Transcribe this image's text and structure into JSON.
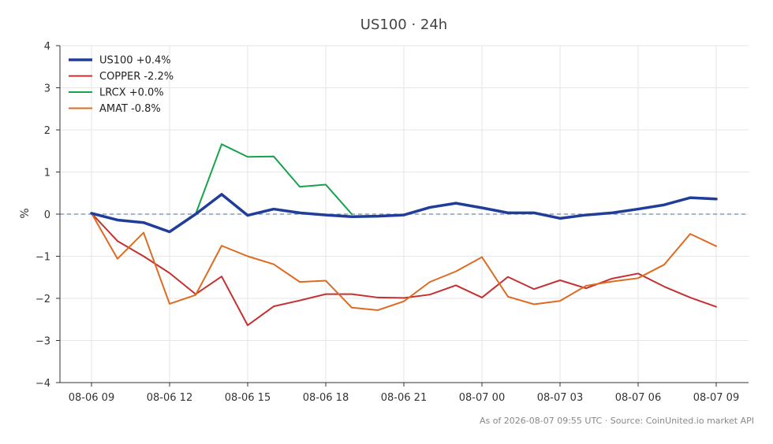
{
  "chart_data": {
    "type": "line",
    "title": "US100 · 24h",
    "xlabel": "",
    "ylabel": "%",
    "ylim": [
      -4,
      4
    ],
    "yticks": [
      4,
      3,
      2,
      1,
      0,
      -1,
      -2,
      -3,
      -4
    ],
    "ytick_labels": [
      "4",
      "3",
      "2",
      "1",
      "0",
      "−1",
      "−2",
      "−3",
      "−4"
    ],
    "x": [
      "08-06 09",
      "08-06 10",
      "08-06 11",
      "08-06 12",
      "08-06 13",
      "08-06 14",
      "08-06 15",
      "08-06 16",
      "08-06 17",
      "08-06 18",
      "08-06 19",
      "08-06 20",
      "08-06 21",
      "08-06 22",
      "08-06 23",
      "08-07 00",
      "08-07 01",
      "08-07 02",
      "08-07 03",
      "08-07 04",
      "08-07 05",
      "08-07 06",
      "08-07 07",
      "08-07 08",
      "08-07 09"
    ],
    "xtick_labels": [
      "08-06 09",
      "08-06 12",
      "08-06 15",
      "08-06 18",
      "08-06 21",
      "08-07 00",
      "08-07 03",
      "08-07 06",
      "08-07 09"
    ],
    "grid": true,
    "legend_position": "top-left",
    "zero_line": true,
    "series": [
      {
        "name": "US100 +0.4%",
        "color": "#1f3d99",
        "width": 3.5,
        "values": [
          0.02,
          -0.14,
          -0.2,
          -0.42,
          0.0,
          0.47,
          -0.03,
          0.12,
          0.03,
          -0.02,
          -0.06,
          -0.05,
          -0.02,
          0.16,
          0.26,
          0.15,
          0.03,
          0.03,
          -0.1,
          -0.02,
          0.03,
          0.12,
          0.22,
          0.39,
          0.36
        ]
      },
      {
        "name": "COPPER -2.2%",
        "color": "#c53030",
        "width": 2,
        "values": [
          0.02,
          -0.64,
          -1.0,
          -1.4,
          -1.9,
          -1.48,
          -2.64,
          -2.19,
          -2.05,
          -1.9,
          -1.9,
          -1.98,
          -1.99,
          -1.91,
          -1.69,
          -1.98,
          -1.49,
          -1.78,
          -1.57,
          -1.76,
          -1.53,
          -1.41,
          -1.72,
          -1.98,
          -2.2
        ]
      },
      {
        "name": "LRCX +0.0%",
        "color": "#16a34a",
        "width": 2,
        "values": [
          null,
          null,
          null,
          null,
          0.0,
          1.66,
          1.36,
          1.37,
          0.65,
          0.7,
          0.0,
          null,
          null,
          null,
          null,
          null,
          null,
          null,
          null,
          null,
          null,
          null,
          null,
          null,
          null
        ]
      },
      {
        "name": "AMAT -0.8%",
        "color": "#dd6b20",
        "width": 2,
        "values": [
          0.02,
          -1.06,
          -0.44,
          -2.13,
          -1.92,
          -0.75,
          -1.0,
          -1.19,
          -1.61,
          -1.58,
          -2.22,
          -2.28,
          -2.07,
          -1.61,
          -1.36,
          -1.02,
          -1.96,
          -2.14,
          -2.06,
          -1.7,
          -1.6,
          -1.52,
          -1.2,
          -0.47,
          -0.76
        ]
      }
    ],
    "footnote": "As of 2026-08-07 09:55 UTC · Source: CoinUnited.io market API",
    "colors": {
      "axis": "#333333",
      "grid": "#e6e6e6",
      "zero_line": "#6b86b0",
      "text": "#333333",
      "title": "#444444",
      "footnote": "#888888"
    }
  }
}
